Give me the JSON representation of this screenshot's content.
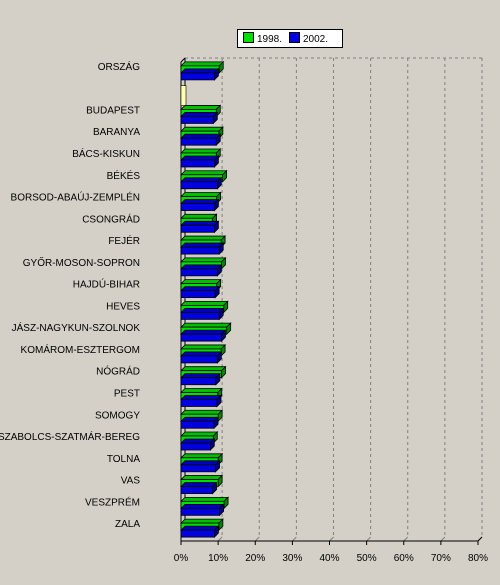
{
  "chart_data": {
    "type": "bar",
    "orientation": "horizontal",
    "categories": [
      "ORSZÁG",
      "",
      "BUDAPEST",
      "BARANYA",
      "BÁCS-KISKUN",
      "BÉKÉS",
      "BORSOD-ABAÚJ-ZEMPLÉN",
      "CSONGRÁD",
      "FEJÉR",
      "GYŐR-MOSON-SOPRON",
      "HAJDÚ-BIHAR",
      "HEVES",
      "JÁSZ-NAGYKUN-SZOLNOK",
      "KOMÁROM-ESZTERGOM",
      "NÓGRÁD",
      "PEST",
      "SOMOGY",
      "SZABOLCS-SZATMÁR-BEREG",
      "TOLNA",
      "VAS",
      "VESZPRÉM",
      "ZALA"
    ],
    "series": [
      {
        "name": "1998.",
        "color": "#00e000",
        "values": [
          10.3,
          null,
          9.5,
          10.2,
          9.5,
          11.2,
          9.6,
          8.5,
          10.8,
          10.9,
          9.6,
          11.5,
          12.3,
          10.8,
          10.9,
          9.9,
          10.0,
          8.7,
          10.0,
          10.0,
          11.6,
          10.2
        ]
      },
      {
        "name": "2002.",
        "color": "#0000e0",
        "values": [
          9.0,
          null,
          8.7,
          9.5,
          9.0,
          9.8,
          9.0,
          9.0,
          10.3,
          9.8,
          9.2,
          10.3,
          10.9,
          9.8,
          9.4,
          9.7,
          8.9,
          7.9,
          9.3,
          8.5,
          10.4,
          9.0
        ]
      }
    ],
    "xlim": [
      0,
      80
    ],
    "xticks": [
      "0%",
      "10%",
      "20%",
      "30%",
      "40%",
      "50%",
      "60%",
      "70%",
      "80%"
    ],
    "grid": true,
    "legend_position": "top-center"
  },
  "colors": {
    "background": "#d4d0c8",
    "plot_background": "#d4d0c8",
    "grid": "#808080",
    "separator_bar": "#ffffb0"
  }
}
